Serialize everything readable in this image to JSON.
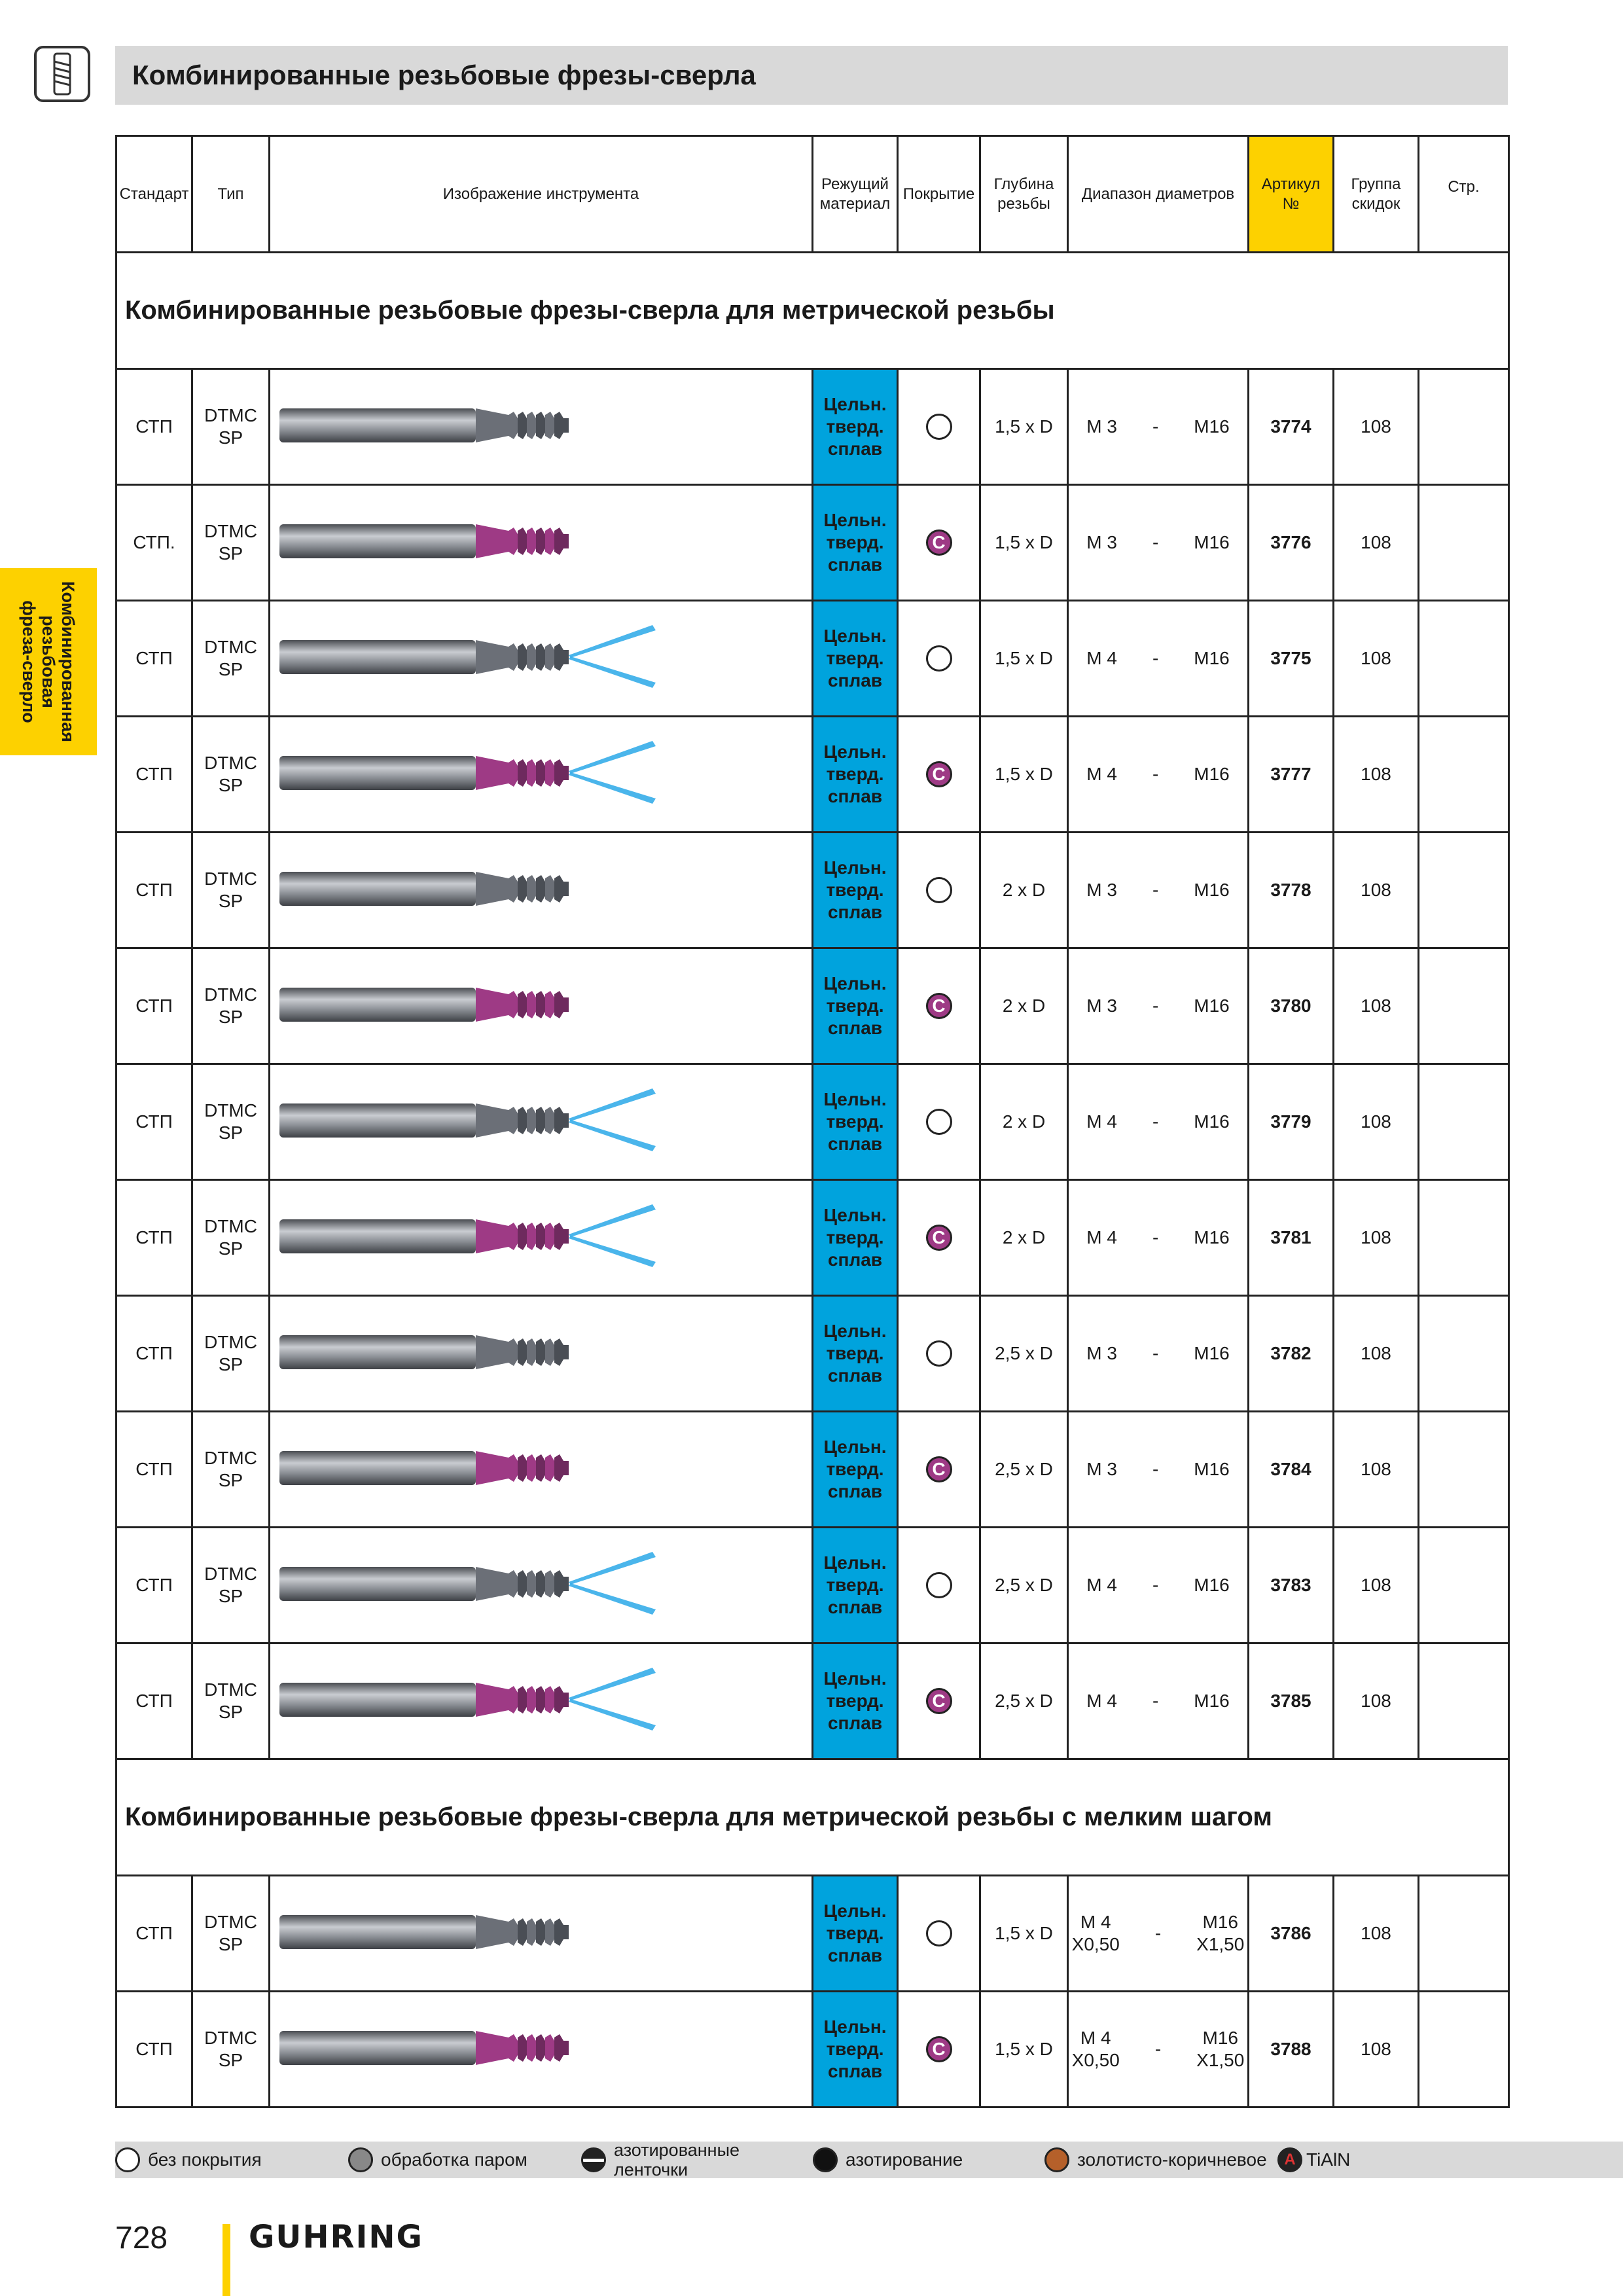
{
  "header": {
    "title": "Комбинированные резьбовые фрезы-сверла"
  },
  "side_tab": {
    "line1": "Комбинированная",
    "line2": "резьбовая",
    "line3": "фреза-сверло"
  },
  "table": {
    "headers": {
      "standard": "Стандарт",
      "type": "Тип",
      "image": "Изображение инструмента",
      "material_1": "Режущий",
      "material_2": "материал",
      "coating": "Покрытие",
      "depth_1": "Глубина",
      "depth_2": "резьбы",
      "diameter": "Диапазон диаметров",
      "article_1": "Артикул",
      "article_2": "№",
      "discount_1": "Группа",
      "discount_2": "скидок",
      "page": "Стр."
    },
    "section1": "Комбинированные резьбовые фрезы-сверла для метрической резьбы",
    "section2": "Комбинированные резьбовые фрезы-сверла для метрической резьбы с мелким шагом",
    "material": {
      "l1": "Цельн.",
      "l2": "тверд.",
      "l3": "сплав"
    },
    "coating_symbol": "C",
    "range_dash": "-",
    "rows": [
      {
        "std": "СТП",
        "type1": "DTMC",
        "type2": "SP",
        "depth": "1,5 x D",
        "d_from": "M 3",
        "d_to": "M16",
        "article": "3774",
        "group": "108"
      },
      {
        "std": "СТП.",
        "type1": "DTMC",
        "type2": "SP",
        "depth": "1,5 x D",
        "d_from": "M 3",
        "d_to": "M16",
        "article": "3776",
        "group": "108"
      },
      {
        "std": "СТП",
        "type1": "DTMC",
        "type2": "SP",
        "depth": "1,5 x D",
        "d_from": "M 4",
        "d_to": "M16",
        "article": "3775",
        "group": "108"
      },
      {
        "std": "СТП",
        "type1": "DTMC",
        "type2": "SP",
        "depth": "1,5 x D",
        "d_from": "M 4",
        "d_to": "M16",
        "article": "3777",
        "group": "108"
      },
      {
        "std": "СТП",
        "type1": "DTMC",
        "type2": "SP",
        "depth": "2 x D",
        "d_from": "M 3",
        "d_to": "M16",
        "article": "3778",
        "group": "108"
      },
      {
        "std": "СТП",
        "type1": "DTMC",
        "type2": "SP",
        "depth": "2 x D",
        "d_from": "M 3",
        "d_to": "M16",
        "article": "3780",
        "group": "108"
      },
      {
        "std": "СТП",
        "type1": "DTMC",
        "type2": "SP",
        "depth": "2 x D",
        "d_from": "M 4",
        "d_to": "M16",
        "article": "3779",
        "group": "108"
      },
      {
        "std": "СТП",
        "type1": "DTMC",
        "type2": "SP",
        "depth": "2 x D",
        "d_from": "M 4",
        "d_to": "M16",
        "article": "3781",
        "group": "108"
      },
      {
        "std": "СТП",
        "type1": "DTMC",
        "type2": "SP",
        "depth": "2,5 x D",
        "d_from": "M 3",
        "d_to": "M16",
        "article": "3782",
        "group": "108"
      },
      {
        "std": "СТП",
        "type1": "DTMC",
        "type2": "SP",
        "depth": "2,5 x D",
        "d_from": "M 3",
        "d_to": "M16",
        "article": "3784",
        "group": "108"
      },
      {
        "std": "СТП",
        "type1": "DTMC",
        "type2": "SP",
        "depth": "2,5 x D",
        "d_from": "M 4",
        "d_to": "M16",
        "article": "3783",
        "group": "108"
      },
      {
        "std": "СТП",
        "type1": "DTMC",
        "type2": "SP",
        "depth": "2,5 x D",
        "d_from": "M 4",
        "d_to": "M16",
        "article": "3785",
        "group": "108"
      }
    ],
    "rows2": [
      {
        "std": "СТП",
        "type1": "DTMC",
        "type2": "SP",
        "depth": "1,5 x D",
        "d_from": "M 4",
        "d_from2": "X0,50",
        "d_to": "M16",
        "d_to2": "X1,50",
        "article": "3786",
        "group": "108"
      },
      {
        "std": "СТП",
        "type1": "DTMC",
        "type2": "SP",
        "depth": "1,5 x D",
        "d_from": "M 4",
        "d_from2": "X0,50",
        "d_to": "M16",
        "d_to2": "X1,50",
        "article": "3788",
        "group": "108"
      }
    ]
  },
  "legend": {
    "uncoated": "без покрытия",
    "steam": "обработка паром",
    "nitrided_strips_1": "азотированные",
    "nitrided_strips_2": "ленточки",
    "nitrided": "азотирование",
    "gold_brown": "золотисто-коричневое",
    "tialn_symbol": "A",
    "tialn": "TiAlN"
  },
  "footer": {
    "page_number": "728",
    "brand": "GUHRING"
  },
  "colors": {
    "accent_yellow": "#fdd100",
    "material_blue": "#00a3dd",
    "coating_purple": "#9e3a85",
    "header_gray": "#d9d9d9"
  }
}
